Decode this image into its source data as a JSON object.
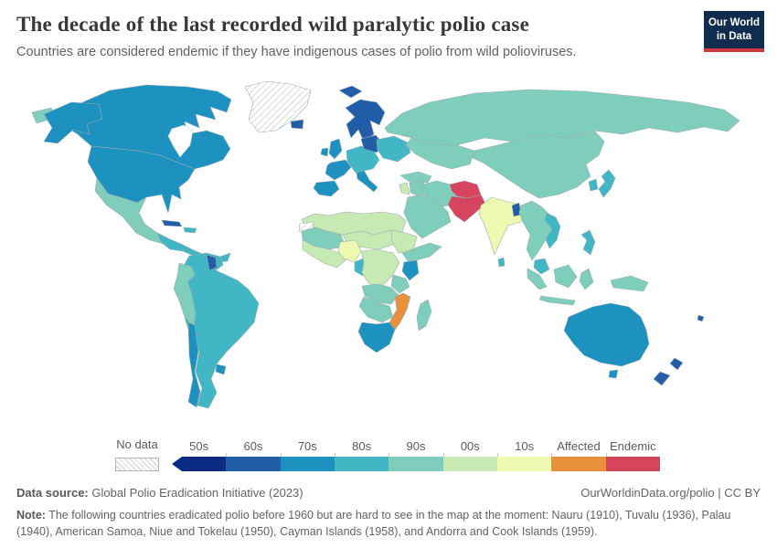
{
  "header": {
    "title": "The decade of the last recorded wild paralytic polio case",
    "subtitle": "Countries are considered endemic if they have indigenous cases of polio from wild polioviruses.",
    "logo_line1": "Our World",
    "logo_line2": "in Data"
  },
  "legend": {
    "no_data_label": "No data",
    "bins": [
      {
        "label": "50s",
        "color": "#0c2c84"
      },
      {
        "label": "60s",
        "color": "#225ea8"
      },
      {
        "label": "70s",
        "color": "#1d91c0"
      },
      {
        "label": "80s",
        "color": "#41b6c4"
      },
      {
        "label": "90s",
        "color": "#7fcdbb"
      },
      {
        "label": "00s",
        "color": "#c7e9b4"
      },
      {
        "label": "10s",
        "color": "#edf8b1"
      },
      {
        "label": "Affected",
        "color": "#e8913d"
      },
      {
        "label": "Endemic",
        "color": "#d6455d"
      }
    ]
  },
  "colors": {
    "border": "#9fadb3",
    "ocean": "#ffffff",
    "no_data_hatch": "#c9c9c9"
  },
  "footer": {
    "data_source_label": "Data source:",
    "data_source": "Global Polio Eradication Initiative (2023)",
    "attribution": "OurWorldinData.org/polio | CC BY",
    "note_label": "Note:",
    "note": "The following countries eradicated polio before 1960 but are hard to see in the map at the moment: Nauru (1910), Tuvalu (1936), Palau (1940), American Samoa, Niue and Tokelau (1950), Cayman Islands (1958), and Andorra and Cook Islands (1959)."
  },
  "chart_data": {
    "type": "choropleth",
    "title": "The decade of the last recorded wild paralytic polio case",
    "subtitle": "Countries are considered endemic if they have indigenous cases of polio from wild polioviruses.",
    "legend_categories": [
      "No data",
      "50s",
      "60s",
      "70s",
      "80s",
      "90s",
      "00s",
      "10s",
      "Affected",
      "Endemic"
    ],
    "regions": [
      {
        "id": "russia",
        "name": "Russia",
        "category": "90s"
      },
      {
        "id": "chukotka",
        "name": "Russia (far east)",
        "category": "90s"
      },
      {
        "id": "canada",
        "name": "Canada",
        "category": "70s"
      },
      {
        "id": "alaska",
        "name": "United States (Alaska)",
        "category": "70s"
      },
      {
        "id": "usa",
        "name": "United States",
        "category": "70s"
      },
      {
        "id": "greenland",
        "name": "Greenland",
        "category": "No data"
      },
      {
        "id": "mexico",
        "name": "Mexico",
        "category": "90s"
      },
      {
        "id": "central-america",
        "name": "Central America",
        "category": "80s"
      },
      {
        "id": "cuba",
        "name": "Cuba",
        "category": "60s"
      },
      {
        "id": "hispaniola",
        "name": "Hispaniola",
        "category": "80s"
      },
      {
        "id": "south-america",
        "name": "Brazil & Southern Cone",
        "category": "80s"
      },
      {
        "id": "andean",
        "name": "Colombia, Ecuador & Peru",
        "category": "90s"
      },
      {
        "id": "chile",
        "name": "Chile",
        "category": "70s"
      },
      {
        "id": "guyana",
        "name": "Guyana",
        "category": "60s"
      },
      {
        "id": "uruguay",
        "name": "Uruguay",
        "category": "70s"
      },
      {
        "id": "iceland",
        "name": "Iceland",
        "category": "60s"
      },
      {
        "id": "svalbard",
        "name": "Svalbard",
        "category": "60s"
      },
      {
        "id": "scandinavia",
        "name": "Scandinavia",
        "category": "60s"
      },
      {
        "id": "uk",
        "name": "United Kingdom",
        "category": "70s"
      },
      {
        "id": "ireland",
        "name": "Ireland",
        "category": "70s"
      },
      {
        "id": "france",
        "name": "France",
        "category": "70s"
      },
      {
        "id": "iberia",
        "name": "Spain & Portugal",
        "category": "70s"
      },
      {
        "id": "italy",
        "name": "Italy",
        "category": "70s"
      },
      {
        "id": "central-europe",
        "name": "Central Europe",
        "category": "80s"
      },
      {
        "id": "poland-baltics",
        "name": "Poland & Baltics",
        "category": "60s"
      },
      {
        "id": "eastern-europe",
        "name": "Eastern Europe",
        "category": "80s"
      },
      {
        "id": "central-asia",
        "name": "Central Asia",
        "category": "90s"
      },
      {
        "id": "china",
        "name": "China & Mongolia",
        "category": "90s"
      },
      {
        "id": "korea",
        "name": "Korea",
        "category": "80s"
      },
      {
        "id": "japan",
        "name": "Japan",
        "category": "80s"
      },
      {
        "id": "turkey",
        "name": "Turkey",
        "category": "90s"
      },
      {
        "id": "levant",
        "name": "Levant",
        "category": "00s"
      },
      {
        "id": "iraq",
        "name": "Iraq",
        "category": "90s"
      },
      {
        "id": "iran",
        "name": "Iran",
        "category": "90s"
      },
      {
        "id": "saudi-arabia",
        "name": "Arabian Peninsula",
        "category": "90s"
      },
      {
        "id": "afghanistan",
        "name": "Afghanistan",
        "category": "Endemic"
      },
      {
        "id": "pakistan",
        "name": "Pakistan",
        "category": "Endemic"
      },
      {
        "id": "india",
        "name": "India",
        "category": "10s"
      },
      {
        "id": "bangladesh",
        "name": "Bangladesh",
        "category": "60s"
      },
      {
        "id": "sri-lanka",
        "name": "Sri Lanka",
        "category": "80s"
      },
      {
        "id": "se-asia",
        "name": "Mainland Southeast Asia",
        "category": "90s"
      },
      {
        "id": "vietnam",
        "name": "Vietnam",
        "category": "80s"
      },
      {
        "id": "malaysia",
        "name": "Malaysia",
        "category": "80s"
      },
      {
        "id": "sumatra",
        "name": "Indonesia (Sumatra)",
        "category": "90s"
      },
      {
        "id": "java",
        "name": "Indonesia (Java)",
        "category": "90s"
      },
      {
        "id": "borneo",
        "name": "Borneo",
        "category": "90s"
      },
      {
        "id": "sulawesi",
        "name": "Indonesia (Sulawesi)",
        "category": "90s"
      },
      {
        "id": "philippines",
        "name": "Philippines",
        "category": "80s"
      },
      {
        "id": "new-guinea",
        "name": "New Guinea",
        "category": "90s"
      },
      {
        "id": "north-africa",
        "name": "North Africa",
        "category": "00s"
      },
      {
        "id": "western-sahara",
        "name": "Western Sahara",
        "category": "No data"
      },
      {
        "id": "sahel-west",
        "name": "Mauritania & Mali",
        "category": "90s"
      },
      {
        "id": "niger-chad",
        "name": "Niger & Chad",
        "category": "00s"
      },
      {
        "id": "sudan",
        "name": "Sudan",
        "category": "00s"
      },
      {
        "id": "horn-of-africa",
        "name": "Horn of Africa",
        "category": "90s"
      },
      {
        "id": "west-africa-coast",
        "name": "West African coast",
        "category": "00s"
      },
      {
        "id": "nigeria",
        "name": "Nigeria",
        "category": "10s"
      },
      {
        "id": "cameroon-congo",
        "name": "Cameroon & Gabon",
        "category": "80s"
      },
      {
        "id": "drc",
        "name": "DR Congo & Central Africa",
        "category": "00s"
      },
      {
        "id": "kenya",
        "name": "Kenya",
        "category": "70s"
      },
      {
        "id": "tanzania",
        "name": "Tanzania",
        "category": "90s"
      },
      {
        "id": "angola-zambia",
        "name": "Angola & Zambia",
        "category": "90s"
      },
      {
        "id": "mozambique-malawi",
        "name": "Mozambique & Malawi",
        "category": "Affected"
      },
      {
        "id": "zimbabwe-namibia",
        "name": "Zimbabwe, Namibia & Botswana",
        "category": "90s"
      },
      {
        "id": "south-africa",
        "name": "South Africa",
        "category": "70s"
      },
      {
        "id": "madagascar",
        "name": "Madagascar",
        "category": "90s"
      },
      {
        "id": "australia",
        "name": "Australia",
        "category": "70s"
      },
      {
        "id": "tasmania",
        "name": "Tasmania",
        "category": "70s"
      },
      {
        "id": "nz-north",
        "name": "New Zealand (North Island)",
        "category": "60s"
      },
      {
        "id": "nz-south",
        "name": "New Zealand (South Island)",
        "category": "60s"
      },
      {
        "id": "fiji",
        "name": "Fiji",
        "category": "60s"
      }
    ]
  }
}
